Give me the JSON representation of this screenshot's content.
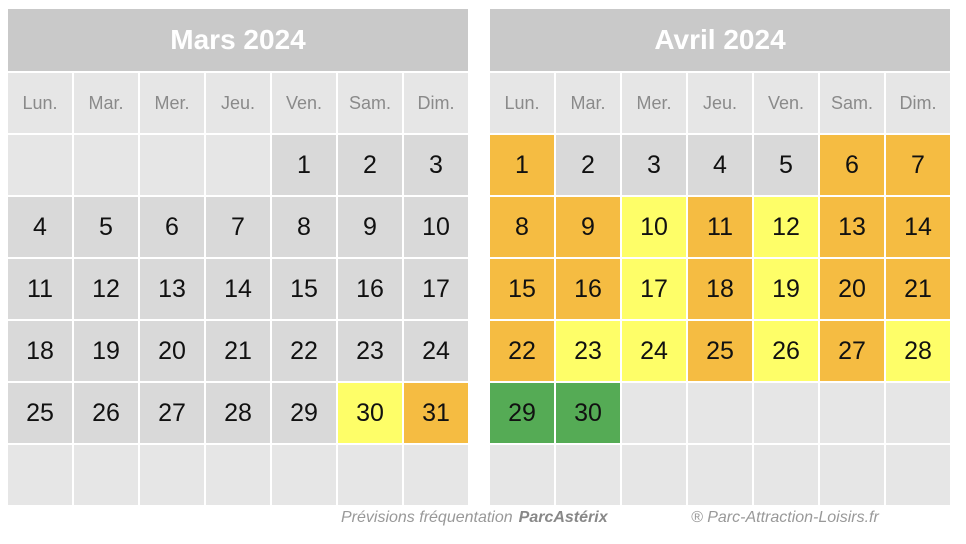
{
  "colors": {
    "title_bg": "#c9c9c9",
    "empty": "#e6e6e6",
    "normal": "#d9d9d9",
    "low": "#fefe68",
    "medium": "#f5bc42",
    "high": "#55ab55"
  },
  "calendars": [
    {
      "title": "Mars 2024",
      "weekdays": [
        "Lun.",
        "Mar.",
        "Mer.",
        "Jeu.",
        "Ven.",
        "Sam.",
        "Dim."
      ],
      "days": [
        {
          "d": "",
          "s": "empty"
        },
        {
          "d": "",
          "s": "empty"
        },
        {
          "d": "",
          "s": "empty"
        },
        {
          "d": "",
          "s": "empty"
        },
        {
          "d": "1",
          "s": "normal"
        },
        {
          "d": "2",
          "s": "normal"
        },
        {
          "d": "3",
          "s": "normal"
        },
        {
          "d": "4",
          "s": "normal"
        },
        {
          "d": "5",
          "s": "normal"
        },
        {
          "d": "6",
          "s": "normal"
        },
        {
          "d": "7",
          "s": "normal"
        },
        {
          "d": "8",
          "s": "normal"
        },
        {
          "d": "9",
          "s": "normal"
        },
        {
          "d": "10",
          "s": "normal"
        },
        {
          "d": "11",
          "s": "normal"
        },
        {
          "d": "12",
          "s": "normal"
        },
        {
          "d": "13",
          "s": "normal"
        },
        {
          "d": "14",
          "s": "normal"
        },
        {
          "d": "15",
          "s": "normal"
        },
        {
          "d": "16",
          "s": "normal"
        },
        {
          "d": "17",
          "s": "normal"
        },
        {
          "d": "18",
          "s": "normal"
        },
        {
          "d": "19",
          "s": "normal"
        },
        {
          "d": "20",
          "s": "normal"
        },
        {
          "d": "21",
          "s": "normal"
        },
        {
          "d": "22",
          "s": "normal"
        },
        {
          "d": "23",
          "s": "normal"
        },
        {
          "d": "24",
          "s": "normal"
        },
        {
          "d": "25",
          "s": "normal"
        },
        {
          "d": "26",
          "s": "normal"
        },
        {
          "d": "27",
          "s": "normal"
        },
        {
          "d": "28",
          "s": "normal"
        },
        {
          "d": "29",
          "s": "normal"
        },
        {
          "d": "30",
          "s": "low"
        },
        {
          "d": "31",
          "s": "medium"
        },
        {
          "d": "",
          "s": "empty"
        },
        {
          "d": "",
          "s": "empty"
        },
        {
          "d": "",
          "s": "empty"
        },
        {
          "d": "",
          "s": "empty"
        },
        {
          "d": "",
          "s": "empty"
        },
        {
          "d": "",
          "s": "empty"
        },
        {
          "d": "",
          "s": "empty"
        }
      ]
    },
    {
      "title": "Avril 2024",
      "weekdays": [
        "Lun.",
        "Mar.",
        "Mer.",
        "Jeu.",
        "Ven.",
        "Sam.",
        "Dim."
      ],
      "days": [
        {
          "d": "1",
          "s": "medium"
        },
        {
          "d": "2",
          "s": "normal"
        },
        {
          "d": "3",
          "s": "normal"
        },
        {
          "d": "4",
          "s": "normal"
        },
        {
          "d": "5",
          "s": "normal"
        },
        {
          "d": "6",
          "s": "medium"
        },
        {
          "d": "7",
          "s": "medium"
        },
        {
          "d": "8",
          "s": "medium"
        },
        {
          "d": "9",
          "s": "medium"
        },
        {
          "d": "10",
          "s": "low"
        },
        {
          "d": "11",
          "s": "medium"
        },
        {
          "d": "12",
          "s": "low"
        },
        {
          "d": "13",
          "s": "medium"
        },
        {
          "d": "14",
          "s": "medium"
        },
        {
          "d": "15",
          "s": "medium"
        },
        {
          "d": "16",
          "s": "medium"
        },
        {
          "d": "17",
          "s": "low"
        },
        {
          "d": "18",
          "s": "medium"
        },
        {
          "d": "19",
          "s": "low"
        },
        {
          "d": "20",
          "s": "medium"
        },
        {
          "d": "21",
          "s": "medium"
        },
        {
          "d": "22",
          "s": "medium"
        },
        {
          "d": "23",
          "s": "low"
        },
        {
          "d": "24",
          "s": "low"
        },
        {
          "d": "25",
          "s": "medium"
        },
        {
          "d": "26",
          "s": "low"
        },
        {
          "d": "27",
          "s": "medium"
        },
        {
          "d": "28",
          "s": "low"
        },
        {
          "d": "29",
          "s": "high"
        },
        {
          "d": "30",
          "s": "high"
        },
        {
          "d": "",
          "s": "empty"
        },
        {
          "d": "",
          "s": "empty"
        },
        {
          "d": "",
          "s": "empty"
        },
        {
          "d": "",
          "s": "empty"
        },
        {
          "d": "",
          "s": "empty"
        },
        {
          "d": "",
          "s": "empty"
        },
        {
          "d": "",
          "s": "empty"
        },
        {
          "d": "",
          "s": "empty"
        },
        {
          "d": "",
          "s": "empty"
        },
        {
          "d": "",
          "s": "empty"
        },
        {
          "d": "",
          "s": "empty"
        },
        {
          "d": "",
          "s": "empty"
        }
      ]
    }
  ],
  "footer": {
    "previsions": "Prévisions fréquentation",
    "brand": "ParcAstérix",
    "copyright": "® Parc-Attraction-Loisirs.fr"
  }
}
